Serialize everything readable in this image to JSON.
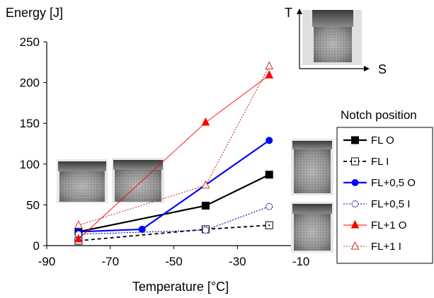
{
  "chart_data": {
    "type": "line",
    "ylabel": "Energy [J]",
    "xlabel": "Temperature [°C]",
    "xlim": [
      -90,
      0
    ],
    "ylim": [
      0,
      250
    ],
    "xticks": [
      -90,
      -70,
      -50,
      -30,
      -10
    ],
    "yticks": [
      0,
      50,
      100,
      150,
      200,
      250
    ],
    "xtick_labels": [
      "-90",
      "-70",
      "-50",
      "-30",
      "-10"
    ],
    "ytick_labels": [
      "0",
      "50",
      "100",
      "150",
      "200",
      "250"
    ],
    "grid": false,
    "legend_title": "Notch position",
    "legend_position": "right",
    "series": [
      {
        "name": "FL O",
        "color": "#000000",
        "marker": "square-filled",
        "line": "solid",
        "x": [
          -80,
          -40,
          -20
        ],
        "y": [
          17,
          49,
          87
        ]
      },
      {
        "name": "FL I",
        "color": "#000000",
        "marker": "square-open",
        "line": "dashed",
        "x": [
          -80,
          -40,
          -20
        ],
        "y": [
          6,
          20,
          25
        ]
      },
      {
        "name": "FL+0,5 O",
        "color": "#0000ff",
        "marker": "circle-filled",
        "line": "solid",
        "x": [
          -80,
          -60,
          -20
        ],
        "y": [
          17,
          20,
          129
        ]
      },
      {
        "name": "FL+0,5 I",
        "color": "#000099",
        "marker": "circle-open",
        "line": "dotted",
        "x": [
          -80,
          -40,
          -20
        ],
        "y": [
          14,
          19,
          48
        ]
      },
      {
        "name": "FL+1 O",
        "color": "#ff0000",
        "marker": "triangle-filled",
        "line": "solid-thin",
        "x": [
          -80,
          -40,
          -20
        ],
        "y": [
          8,
          151,
          209
        ]
      },
      {
        "name": "FL+1 I",
        "color": "#c0392b",
        "marker": "triangle-open",
        "line": "dotted",
        "x": [
          -80,
          -40,
          -20
        ],
        "y": [
          25,
          74,
          220
        ]
      }
    ]
  },
  "inset": {
    "t_label": "T",
    "s_label": "S"
  },
  "photos": {
    "photo_1_label": "",
    "photo_2_label": ""
  }
}
